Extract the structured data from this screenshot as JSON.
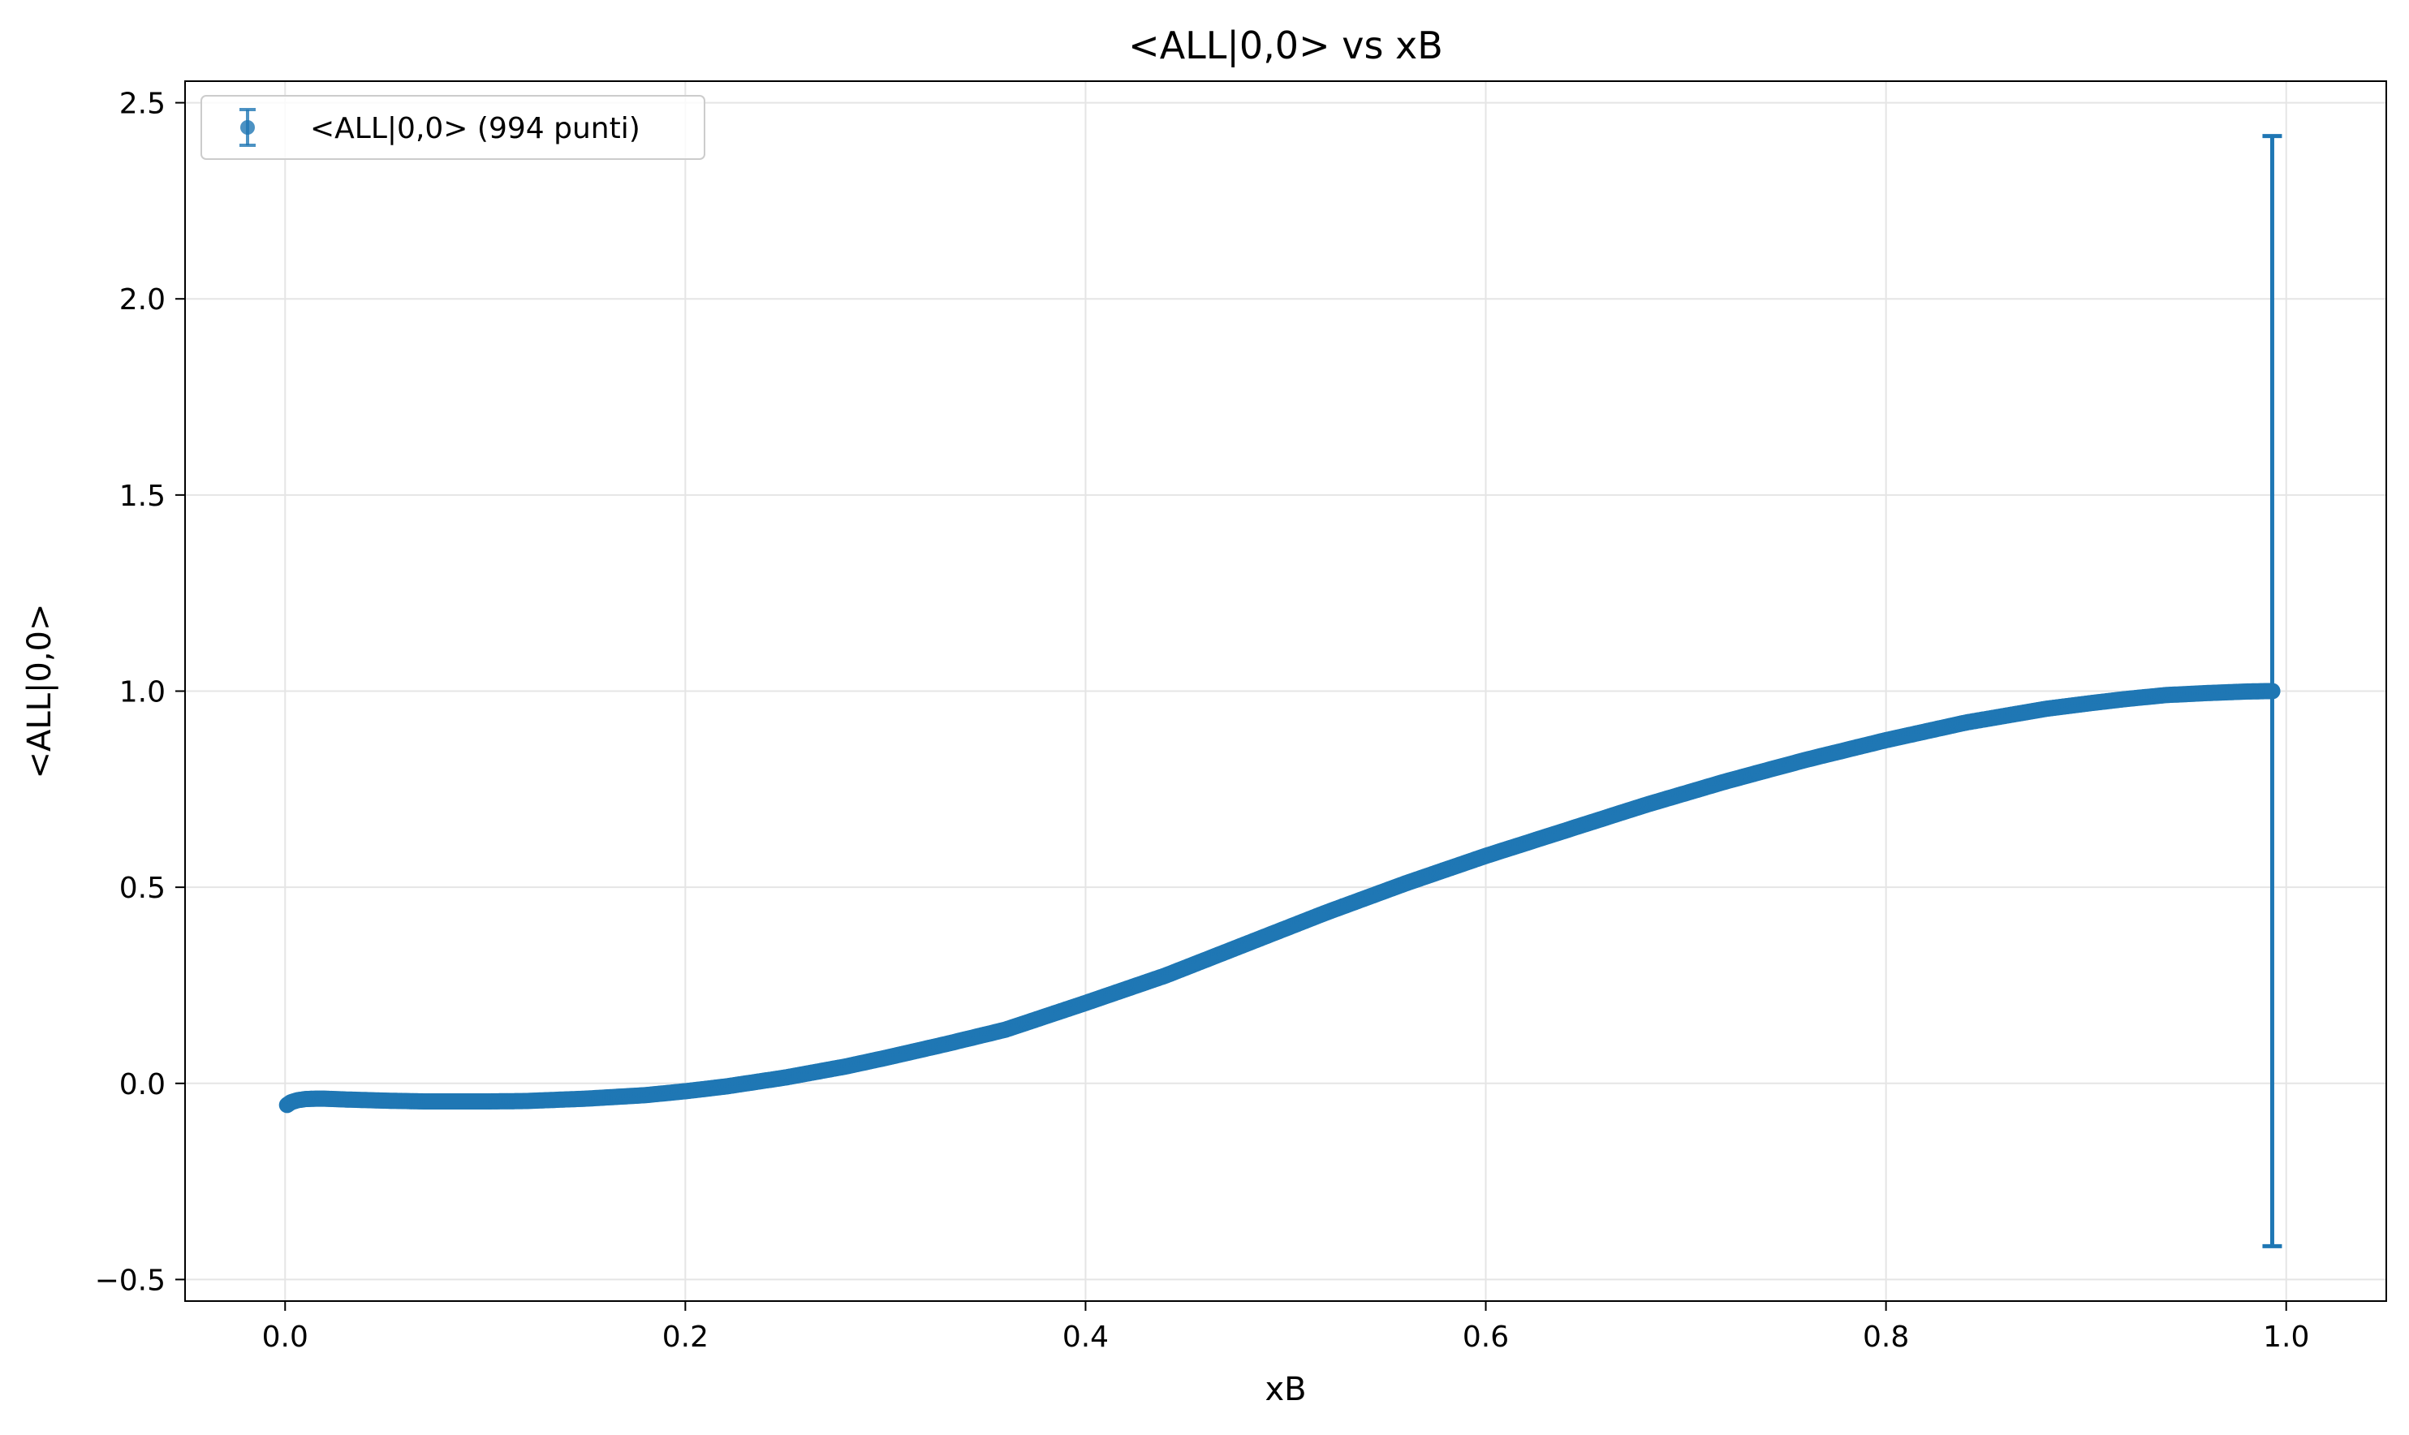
{
  "chart_data": {
    "type": "scatter",
    "title": "<ALL|0,0> vs xB",
    "xlabel": "xB",
    "ylabel": "<ALL|0,0>",
    "xlim": [
      -0.05,
      1.05
    ],
    "ylim": [
      -0.555,
      2.555
    ],
    "xticks": [
      0.0,
      0.2,
      0.4,
      0.6,
      0.8,
      1.0
    ],
    "xtick_labels": [
      "0.0",
      "0.2",
      "0.4",
      "0.6",
      "0.8",
      "1.0"
    ],
    "yticks": [
      -0.5,
      0.0,
      0.5,
      1.0,
      1.5,
      2.0,
      2.5
    ],
    "ytick_labels": [
      "−0.5",
      "0.0",
      "0.5",
      "1.0",
      "1.5",
      "2.0",
      "2.5"
    ],
    "grid": true,
    "legend": {
      "position": "top-left",
      "entries": [
        "<ALL|0,0> (994 punti)"
      ]
    },
    "colors": {
      "series": "#1f77b4",
      "grid": "#e5e5e5",
      "axes": "#000000"
    },
    "series": [
      {
        "name": "<ALL|0,0> (994 punti)",
        "marker": "circle",
        "x": [
          0.001,
          0.003,
          0.006,
          0.01,
          0.015,
          0.02,
          0.03,
          0.05,
          0.07,
          0.1,
          0.12,
          0.15,
          0.18,
          0.2,
          0.22,
          0.25,
          0.28,
          0.3,
          0.33,
          0.36,
          0.4,
          0.44,
          0.48,
          0.5,
          0.52,
          0.56,
          0.6,
          0.64,
          0.68,
          0.7,
          0.72,
          0.76,
          0.8,
          0.84,
          0.88,
          0.9,
          0.92,
          0.94,
          0.96,
          0.98,
          0.99,
          0.993
        ],
        "y": [
          -0.055,
          -0.048,
          -0.043,
          -0.04,
          -0.039,
          -0.039,
          -0.041,
          -0.044,
          -0.046,
          -0.046,
          -0.045,
          -0.039,
          -0.03,
          -0.02,
          -0.008,
          0.015,
          0.043,
          0.065,
          0.1,
          0.137,
          0.205,
          0.275,
          0.355,
          0.395,
          0.435,
          0.51,
          0.58,
          0.645,
          0.71,
          0.74,
          0.77,
          0.825,
          0.875,
          0.92,
          0.955,
          0.968,
          0.98,
          0.99,
          0.995,
          0.999,
          1.0,
          1.0
        ],
        "error_bars": [
          {
            "x": 0.993,
            "y": 1.0,
            "low": -0.415,
            "high": 2.415
          }
        ]
      }
    ]
  }
}
